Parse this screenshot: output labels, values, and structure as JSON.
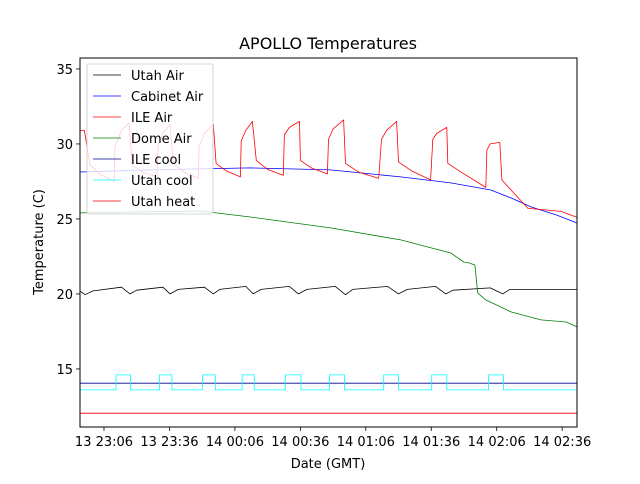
{
  "chart_data": {
    "type": "line",
    "title": "APOLLO Temperatures",
    "xlabel": "Date (GMT)",
    "ylabel": "Temperature (C)",
    "x_units": "minutes after 13 23:06",
    "xlim": [
      -11,
      216.8
    ],
    "ylim": [
      11.13,
      35.73
    ],
    "grid": false,
    "legend_position": "upper-left",
    "x_ticks": [
      {
        "value": 0,
        "label": "13 23:06"
      },
      {
        "value": 30,
        "label": "13 23:36"
      },
      {
        "value": 60,
        "label": "14 00:06"
      },
      {
        "value": 90,
        "label": "14 00:36"
      },
      {
        "value": 120,
        "label": "14 01:06"
      },
      {
        "value": 150,
        "label": "14 01:36"
      },
      {
        "value": 180,
        "label": "14 02:06"
      },
      {
        "value": 210,
        "label": "14 02:36"
      }
    ],
    "y_ticks": [
      {
        "value": 15,
        "label": "15"
      },
      {
        "value": 20,
        "label": "20"
      },
      {
        "value": 25,
        "label": "25"
      },
      {
        "value": 30,
        "label": "30"
      },
      {
        "value": 35,
        "label": "35"
      }
    ],
    "series": [
      {
        "name": "Utah Air",
        "color": "#000000",
        "points": [
          [
            -11,
            20.2
          ],
          [
            -8.7,
            19.95
          ],
          [
            -5,
            20.2
          ],
          [
            8,
            20.45
          ],
          [
            11.9,
            20.0
          ],
          [
            15,
            20.25
          ],
          [
            27,
            20.45
          ],
          [
            30.3,
            20.0
          ],
          [
            34,
            20.3
          ],
          [
            46,
            20.45
          ],
          [
            50.1,
            20.0
          ],
          [
            53,
            20.3
          ],
          [
            65,
            20.5
          ],
          [
            68.4,
            20.0
          ],
          [
            72,
            20.3
          ],
          [
            85,
            20.5
          ],
          [
            89.1,
            20.0
          ],
          [
            93,
            20.3
          ],
          [
            106,
            20.5
          ],
          [
            110.7,
            19.95
          ],
          [
            114,
            20.3
          ],
          [
            130,
            20.5
          ],
          [
            135,
            20.0
          ],
          [
            139,
            20.3
          ],
          [
            152,
            20.5
          ],
          [
            156.6,
            20.0
          ],
          [
            160,
            20.25
          ],
          [
            177,
            20.4
          ],
          [
            182.8,
            20.0
          ],
          [
            186,
            20.3
          ],
          [
            216.8,
            20.3
          ]
        ]
      },
      {
        "name": "Cabinet Air",
        "color": "#0000ff",
        "points": [
          [
            -11,
            28.13
          ],
          [
            21.1,
            28.27
          ],
          [
            67.1,
            28.4
          ],
          [
            103.8,
            28.27
          ],
          [
            136,
            27.8
          ],
          [
            158.9,
            27.4
          ],
          [
            177.3,
            26.93
          ],
          [
            186.5,
            26.4
          ],
          [
            195.7,
            25.8
          ],
          [
            207.2,
            25.27
          ],
          [
            216.8,
            24.73
          ]
        ]
      },
      {
        "name": "ILE Air",
        "color": "#ff0000",
        "points": [
          [
            -11,
            30.9
          ],
          [
            -9,
            30.9
          ],
          [
            -6.4,
            28.6
          ],
          [
            -2,
            28
          ],
          [
            4.6,
            27.5
          ],
          [
            5.1,
            29.8
          ],
          [
            8,
            30.9
          ],
          [
            11.5,
            31.4
          ],
          [
            12.9,
            28.6
          ],
          [
            18,
            28.1
          ],
          [
            24.3,
            27.8
          ],
          [
            24.8,
            29.9
          ],
          [
            27,
            30.7
          ],
          [
            30.3,
            31.3
          ],
          [
            31.7,
            28.7
          ],
          [
            37,
            28.1
          ],
          [
            43.2,
            27.7
          ],
          [
            43.6,
            29.8
          ],
          [
            46,
            30.7
          ],
          [
            50.1,
            31.3
          ],
          [
            51.4,
            28.7
          ],
          [
            56,
            28.2
          ],
          [
            62.5,
            27.8
          ],
          [
            62.9,
            30.2
          ],
          [
            65,
            30.9
          ],
          [
            68,
            31.5
          ],
          [
            69.8,
            28.9
          ],
          [
            75,
            28.3
          ],
          [
            82.2,
            27.9
          ],
          [
            82.7,
            30.6
          ],
          [
            85,
            31.1
          ],
          [
            89.6,
            31.5
          ],
          [
            90,
            28.9
          ],
          [
            95,
            28.4
          ],
          [
            102.4,
            28.0
          ],
          [
            102.9,
            30.3
          ],
          [
            105,
            31.0
          ],
          [
            109.8,
            31.6
          ],
          [
            110.7,
            28.7
          ],
          [
            117,
            28.1
          ],
          [
            125.9,
            27.7
          ],
          [
            127.2,
            30.3
          ],
          [
            129.5,
            30.9
          ],
          [
            134.1,
            31.5
          ],
          [
            135,
            28.8
          ],
          [
            141,
            28.2
          ],
          [
            149.7,
            27.6
          ],
          [
            150.7,
            30.3
          ],
          [
            152.5,
            30.7
          ],
          [
            157.1,
            31.1
          ],
          [
            157.6,
            28.7
          ],
          [
            165,
            28.0
          ],
          [
            175,
            27.1
          ],
          [
            175.5,
            29.6
          ],
          [
            177,
            30.0
          ],
          [
            181.4,
            30.1
          ],
          [
            182.4,
            27.6
          ],
          [
            188,
            26.7
          ],
          [
            194.3,
            25.7
          ],
          [
            202,
            25.6
          ],
          [
            209.5,
            25.5
          ],
          [
            216.8,
            25.1
          ]
        ]
      },
      {
        "name": "Dome Air",
        "color": "#008000",
        "points": [
          [
            -11,
            25.4
          ],
          [
            44.1,
            25.53
          ],
          [
            67.1,
            25.13
          ],
          [
            103.8,
            24.4
          ],
          [
            136,
            23.6
          ],
          [
            158.9,
            22.73
          ],
          [
            164.9,
            22.13
          ],
          [
            167.2,
            22.07
          ],
          [
            170,
            21.93
          ],
          [
            171.3,
            20.07
          ],
          [
            175,
            19.6
          ],
          [
            186.5,
            18.8
          ],
          [
            200.3,
            18.27
          ],
          [
            211.8,
            18.13
          ],
          [
            216.8,
            17.8
          ]
        ]
      },
      {
        "name": "ILE cool",
        "color": "#00008b",
        "points": [
          [
            -11,
            14.05
          ],
          [
            216.8,
            14.05
          ]
        ]
      },
      {
        "name": "Utah cool",
        "color": "#00ffff",
        "step": true,
        "low": 13.6,
        "high": 14.6,
        "on_intervals": [
          [
            5.5,
            12.2
          ],
          [
            25.4,
            31.1
          ],
          [
            45.1,
            51.0
          ],
          [
            63.3,
            68.9
          ],
          [
            83.1,
            90.3
          ],
          [
            103.3,
            110.2
          ],
          [
            128.2,
            135.0
          ],
          [
            150.2,
            157.1
          ],
          [
            176.3,
            183.1
          ]
        ]
      },
      {
        "name": "Utah heat",
        "color": "#ff0000",
        "points": [
          [
            -11,
            12.05
          ],
          [
            216.8,
            12.05
          ]
        ]
      }
    ]
  }
}
